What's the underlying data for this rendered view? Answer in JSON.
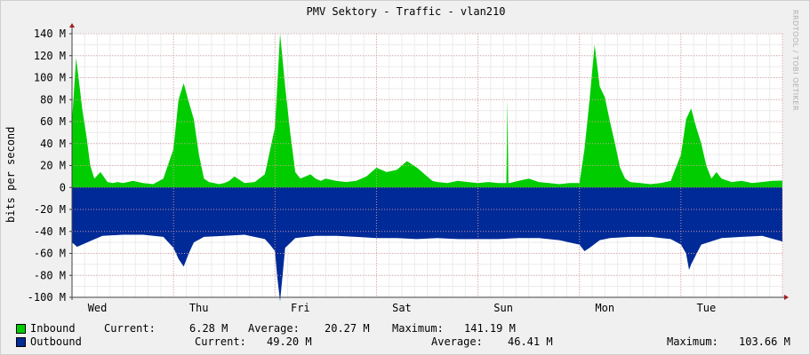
{
  "title": "PMV Sektory - Traffic - vlan210",
  "watermark": "RRDTOOL / TOBI OETIKER",
  "colors": {
    "inbound": "#00cc00",
    "outbound": "#002a97",
    "grid": "#e0a0a0",
    "background": "#ffffff",
    "frame": "#f0f0f0"
  },
  "chart_data": {
    "type": "area",
    "title": "PMV Sektory - Traffic - vlan210",
    "ylabel": "bits per second",
    "xlabel": "",
    "ylim": [
      -100,
      140
    ],
    "y_unit": "M",
    "y_ticks": [
      "140 M",
      "120 M",
      "100 M",
      "80 M",
      "60 M",
      "40 M",
      "20 M",
      "0",
      "-20 M",
      "-40 M",
      "-60 M",
      "-80 M",
      "-100 M"
    ],
    "y_tick_values": [
      140,
      120,
      100,
      80,
      60,
      40,
      20,
      0,
      -20,
      -40,
      -60,
      -80,
      -100
    ],
    "x_ticks": [
      "Wed",
      "Thu",
      "Fri",
      "Sat",
      "Sun",
      "Mon",
      "Tue"
    ],
    "x_tick_positions": [
      0.25,
      1.25,
      2.25,
      3.25,
      4.25,
      5.25,
      6.25
    ],
    "x_range": [
      0,
      7.0
    ],
    "grid": true,
    "series": [
      {
        "name": "Inbound",
        "color": "#00cc00",
        "x": [
          0,
          0.04,
          0.08,
          0.1,
          0.14,
          0.18,
          0.22,
          0.28,
          0.35,
          0.4,
          0.45,
          0.5,
          0.55,
          0.6,
          0.7,
          0.8,
          0.9,
          1.0,
          1.05,
          1.1,
          1.15,
          1.2,
          1.25,
          1.3,
          1.35,
          1.4,
          1.45,
          1.5,
          1.55,
          1.6,
          1.7,
          1.8,
          1.9,
          2.0,
          2.05,
          2.1,
          2.15,
          2.2,
          2.25,
          2.3,
          2.35,
          2.4,
          2.45,
          2.5,
          2.6,
          2.7,
          2.8,
          2.9,
          3.0,
          3.1,
          3.2,
          3.3,
          3.4,
          3.5,
          3.55,
          3.6,
          3.7,
          3.8,
          3.9,
          4.0,
          4.1,
          4.2,
          4.28,
          4.29,
          4.3,
          4.31,
          4.4,
          4.5,
          4.6,
          4.7,
          4.8,
          4.9,
          5.0,
          5.05,
          5.1,
          5.15,
          5.2,
          5.25,
          5.3,
          5.35,
          5.4,
          5.45,
          5.5,
          5.6,
          5.7,
          5.8,
          5.9,
          6.0,
          6.05,
          6.1,
          6.15,
          6.2,
          6.25,
          6.3,
          6.35,
          6.4,
          6.5,
          6.6,
          6.7,
          6.8,
          6.9,
          7.0
        ],
        "values": [
          60,
          118,
          88,
          72,
          48,
          20,
          8,
          14,
          5,
          4,
          5,
          4,
          5,
          6,
          4,
          3,
          8,
          35,
          80,
          95,
          78,
          62,
          30,
          8,
          5,
          4,
          3,
          4,
          6,
          10,
          4,
          5,
          12,
          55,
          140,
          92,
          50,
          14,
          8,
          10,
          12,
          8,
          6,
          8,
          6,
          5,
          6,
          10,
          18,
          14,
          16,
          24,
          18,
          10,
          6,
          5,
          4,
          6,
          5,
          4,
          5,
          4,
          4,
          80,
          4,
          4,
          6,
          8,
          5,
          4,
          3,
          4,
          4,
          35,
          80,
          130,
          92,
          82,
          60,
          40,
          18,
          8,
          5,
          4,
          3,
          4,
          6,
          30,
          62,
          72,
          55,
          40,
          20,
          8,
          14,
          8,
          5,
          6,
          4,
          5,
          6,
          6.28
        ]
      },
      {
        "name": "Outbound",
        "color": "#002a97",
        "x": [
          0,
          0.05,
          0.1,
          0.2,
          0.3,
          0.5,
          0.7,
          0.9,
          1.0,
          1.05,
          1.1,
          1.15,
          1.2,
          1.3,
          1.5,
          1.7,
          1.9,
          1.95,
          2.0,
          2.02,
          2.05,
          2.08,
          2.1,
          2.2,
          2.4,
          2.6,
          2.8,
          3.0,
          3.2,
          3.4,
          3.6,
          3.8,
          4.0,
          4.2,
          4.4,
          4.6,
          4.8,
          5.0,
          5.05,
          5.1,
          5.2,
          5.3,
          5.5,
          5.7,
          5.9,
          6.0,
          6.05,
          6.08,
          6.1,
          6.2,
          6.4,
          6.6,
          6.8,
          7.0
        ],
        "values": [
          -50,
          -54,
          -52,
          -48,
          -44,
          -43,
          -43,
          -45,
          -55,
          -65,
          -72,
          -60,
          -50,
          -45,
          -44,
          -43,
          -47,
          -52,
          -58,
          -80,
          -103.66,
          -75,
          -55,
          -46,
          -44,
          -44,
          -45,
          -46,
          -46,
          -47,
          -46,
          -47,
          -47,
          -47,
          -46,
          -46,
          -48,
          -52,
          -58,
          -55,
          -48,
          -46,
          -45,
          -45,
          -47,
          -52,
          -60,
          -75,
          -70,
          -52,
          -46,
          -45,
          -44,
          -49.2
        ]
      }
    ]
  },
  "legend": [
    {
      "label": "Inbound",
      "current_label": "Current:",
      "current": "6.28 M",
      "average_label": "Average:",
      "average": "20.27 M",
      "maximum_label": "Maximum:",
      "maximum": "141.19 M"
    },
    {
      "label": "Outbound",
      "current_label": "Current:",
      "current": "49.20 M",
      "average_label": "Average:",
      "average": "46.41 M",
      "maximum_label": "Maximum:",
      "maximum": "103.66 M"
    }
  ]
}
